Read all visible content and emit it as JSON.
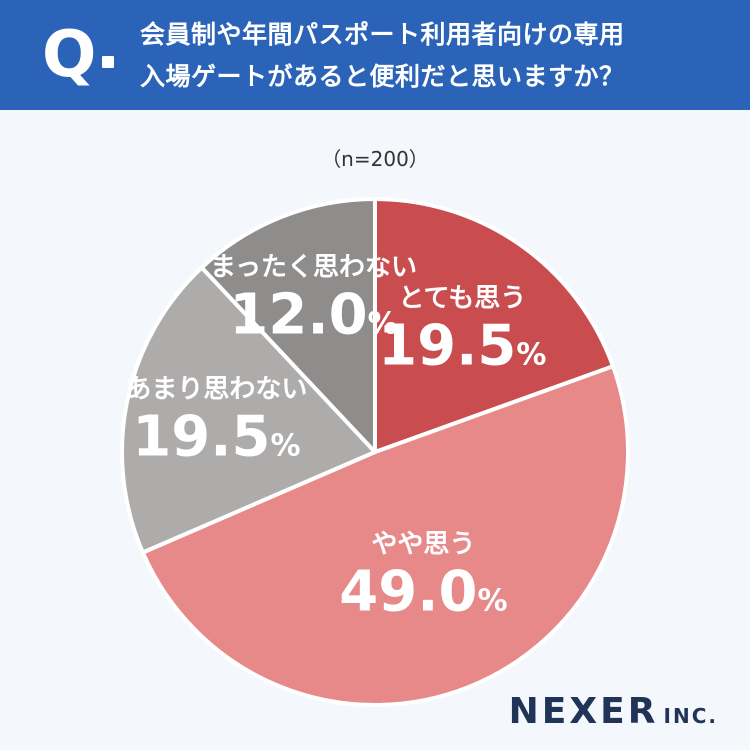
{
  "question": {
    "mark": "Q",
    "line1": "会員制や年間パスポート利用者向けの専用",
    "line2": "入場ゲートがあると便利だと思いますか？"
  },
  "sample_note": "（n=200）",
  "chart_data": {
    "type": "pie",
    "categories": [
      "とても思う",
      "やや思う",
      "あまり思わない",
      "まったく思わない"
    ],
    "values": [
      19.5,
      49.0,
      19.5,
      12.0
    ],
    "value_labels": [
      "19.5",
      "49.0",
      "19.5",
      "12.0"
    ],
    "unit": "%",
    "colors": [
      "#c94d4f",
      "#e78889",
      "#aeabab",
      "#8f8c8c"
    ],
    "start_angle": "12 o'clock",
    "direction": "clockwise"
  },
  "brand": {
    "main": "NEXER",
    "sub": "INC."
  }
}
